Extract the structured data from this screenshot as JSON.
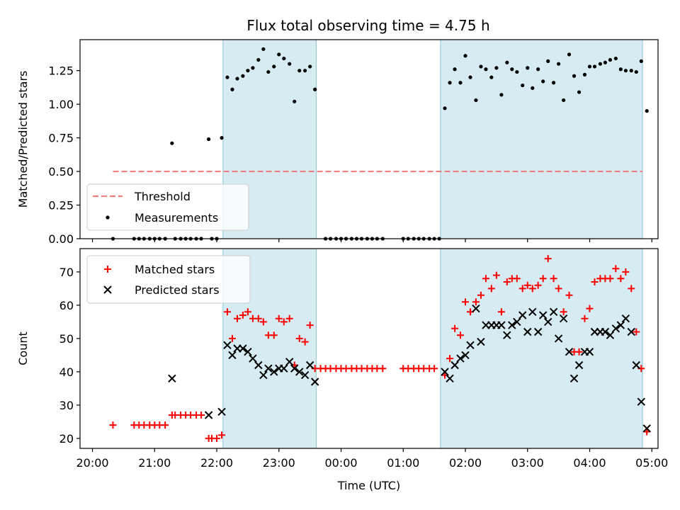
{
  "chart_data": [
    {
      "type": "scatter",
      "title": "Flux total observing time = 4.75 h",
      "xlabel": "",
      "ylabel": "Matched/Predicted stars",
      "ylim": [
        0,
        1.48
      ],
      "yticks": [
        0.0,
        0.25,
        0.5,
        0.75,
        1.0,
        1.25
      ],
      "ytick_labels": [
        "0.00",
        "0.25",
        "0.50",
        "0.75",
        "1.00",
        "1.25"
      ],
      "xlim": [
        19.8,
        29.1
      ],
      "xticks": [
        20,
        21,
        22,
        23,
        24,
        25,
        26,
        27,
        28,
        29
      ],
      "xtick_labels": [
        "20:00",
        "21:00",
        "22:00",
        "23:00",
        "00:00",
        "01:00",
        "02:00",
        "03:00",
        "04:00",
        "05:00"
      ],
      "grid": false,
      "legend_position": "lower-left",
      "observing_windows": [
        [
          22.1,
          23.6
        ],
        [
          25.6,
          28.85
        ]
      ],
      "threshold": {
        "name": "Threshold",
        "y": 0.5,
        "x_range": [
          20.33,
          28.85
        ],
        "color": "#f08080"
      },
      "series": [
        {
          "name": "Measurements",
          "color": "#000000",
          "points": [
            [
              20.33,
              0
            ],
            [
              20.67,
              0
            ],
            [
              20.75,
              0
            ],
            [
              20.83,
              0
            ],
            [
              20.92,
              0
            ],
            [
              21.0,
              0
            ],
            [
              21.08,
              0
            ],
            [
              21.17,
              0
            ],
            [
              21.28,
              0.71
            ],
            [
              21.33,
              0
            ],
            [
              21.42,
              0
            ],
            [
              21.5,
              0
            ],
            [
              21.58,
              0
            ],
            [
              21.67,
              0
            ],
            [
              21.75,
              0
            ],
            [
              21.87,
              0.74
            ],
            [
              21.92,
              0
            ],
            [
              22.0,
              0
            ],
            [
              22.08,
              0.75
            ],
            [
              22.17,
              1.2
            ],
            [
              22.25,
              1.11
            ],
            [
              22.33,
              1.19
            ],
            [
              22.42,
              1.21
            ],
            [
              22.5,
              1.25
            ],
            [
              22.58,
              1.27
            ],
            [
              22.67,
              1.33
            ],
            [
              22.75,
              1.41
            ],
            [
              22.83,
              1.24
            ],
            [
              22.92,
              1.28
            ],
            [
              23.0,
              1.37
            ],
            [
              23.08,
              1.34
            ],
            [
              23.17,
              1.3
            ],
            [
              23.25,
              1.02
            ],
            [
              23.33,
              1.25
            ],
            [
              23.42,
              1.25
            ],
            [
              23.5,
              1.28
            ],
            [
              23.58,
              1.11
            ],
            [
              23.75,
              0
            ],
            [
              23.83,
              0
            ],
            [
              23.92,
              0
            ],
            [
              24.0,
              0
            ],
            [
              24.08,
              0
            ],
            [
              24.17,
              0
            ],
            [
              24.25,
              0
            ],
            [
              24.33,
              0
            ],
            [
              24.42,
              0
            ],
            [
              24.5,
              0
            ],
            [
              24.58,
              0
            ],
            [
              24.67,
              0
            ],
            [
              25.0,
              0
            ],
            [
              25.08,
              0
            ],
            [
              25.17,
              0
            ],
            [
              25.25,
              0
            ],
            [
              25.33,
              0
            ],
            [
              25.42,
              0
            ],
            [
              25.5,
              0
            ],
            [
              25.58,
              0
            ],
            [
              25.67,
              0.97
            ],
            [
              25.75,
              1.16
            ],
            [
              25.83,
              1.26
            ],
            [
              25.92,
              1.16
            ],
            [
              26.0,
              1.36
            ],
            [
              26.08,
              1.2
            ],
            [
              26.17,
              1.03
            ],
            [
              26.25,
              1.28
            ],
            [
              26.33,
              1.26
            ],
            [
              26.42,
              1.2
            ],
            [
              26.5,
              1.27
            ],
            [
              26.58,
              1.07
            ],
            [
              26.67,
              1.31
            ],
            [
              26.75,
              1.26
            ],
            [
              26.83,
              1.24
            ],
            [
              26.92,
              1.14
            ],
            [
              27.0,
              1.27
            ],
            [
              27.08,
              1.12
            ],
            [
              27.17,
              1.26
            ],
            [
              27.25,
              1.17
            ],
            [
              27.33,
              1.32
            ],
            [
              27.42,
              1.16
            ],
            [
              27.5,
              1.3
            ],
            [
              27.58,
              1.03
            ],
            [
              27.67,
              1.37
            ],
            [
              27.75,
              1.21
            ],
            [
              27.83,
              1.09
            ],
            [
              27.92,
              1.22
            ],
            [
              28.0,
              1.28
            ],
            [
              28.08,
              1.28
            ],
            [
              28.17,
              1.3
            ],
            [
              28.25,
              1.31
            ],
            [
              28.33,
              1.33
            ],
            [
              28.42,
              1.34
            ],
            [
              28.5,
              1.26
            ],
            [
              28.58,
              1.25
            ],
            [
              28.67,
              1.25
            ],
            [
              28.75,
              1.24
            ],
            [
              28.83,
              1.32
            ],
            [
              28.92,
              0.95
            ]
          ]
        }
      ]
    },
    {
      "type": "scatter",
      "title": "",
      "xlabel": "Time (UTC)",
      "ylabel": "Count",
      "ylim": [
        17,
        77
      ],
      "yticks": [
        20,
        30,
        40,
        50,
        60,
        70
      ],
      "ytick_labels": [
        "20",
        "30",
        "40",
        "50",
        "60",
        "70"
      ],
      "xlim": [
        19.8,
        29.1
      ],
      "xticks": [
        20,
        21,
        22,
        23,
        24,
        25,
        26,
        27,
        28,
        29
      ],
      "xtick_labels": [
        "20:00",
        "21:00",
        "22:00",
        "23:00",
        "00:00",
        "01:00",
        "02:00",
        "03:00",
        "04:00",
        "05:00"
      ],
      "grid": false,
      "legend_position": "upper-left",
      "observing_windows": [
        [
          22.1,
          23.6
        ],
        [
          25.6,
          28.85
        ]
      ],
      "series": [
        {
          "name": "Matched stars",
          "marker": "plus",
          "color": "#ff0000",
          "points": [
            [
              20.33,
              24
            ],
            [
              20.67,
              24
            ],
            [
              20.75,
              24
            ],
            [
              20.83,
              24
            ],
            [
              20.92,
              24
            ],
            [
              21.0,
              24
            ],
            [
              21.08,
              24
            ],
            [
              21.17,
              24
            ],
            [
              21.28,
              27
            ],
            [
              21.33,
              27
            ],
            [
              21.42,
              27
            ],
            [
              21.5,
              27
            ],
            [
              21.58,
              27
            ],
            [
              21.67,
              27
            ],
            [
              21.75,
              27
            ],
            [
              21.87,
              20
            ],
            [
              21.92,
              20
            ],
            [
              22.0,
              20
            ],
            [
              22.08,
              21
            ],
            [
              22.17,
              58
            ],
            [
              22.25,
              50
            ],
            [
              22.33,
              56
            ],
            [
              22.42,
              57
            ],
            [
              22.5,
              58
            ],
            [
              22.58,
              56
            ],
            [
              22.67,
              56
            ],
            [
              22.75,
              55
            ],
            [
              22.83,
              51
            ],
            [
              22.92,
              51
            ],
            [
              23.0,
              56
            ],
            [
              23.08,
              55
            ],
            [
              23.17,
              56
            ],
            [
              23.25,
              42
            ],
            [
              23.33,
              50
            ],
            [
              23.42,
              49
            ],
            [
              23.5,
              54
            ],
            [
              23.58,
              41
            ],
            [
              23.67,
              41
            ],
            [
              23.75,
              41
            ],
            [
              23.83,
              41
            ],
            [
              23.92,
              41
            ],
            [
              24.0,
              41
            ],
            [
              24.08,
              41
            ],
            [
              24.17,
              41
            ],
            [
              24.25,
              41
            ],
            [
              24.33,
              41
            ],
            [
              24.42,
              41
            ],
            [
              24.5,
              41
            ],
            [
              24.58,
              41
            ],
            [
              24.67,
              41
            ],
            [
              25.0,
              41
            ],
            [
              25.08,
              41
            ],
            [
              25.17,
              41
            ],
            [
              25.25,
              41
            ],
            [
              25.33,
              41
            ],
            [
              25.42,
              41
            ],
            [
              25.5,
              41
            ],
            [
              25.67,
              39
            ],
            [
              25.75,
              44
            ],
            [
              25.83,
              53
            ],
            [
              25.92,
              51
            ],
            [
              26.0,
              61
            ],
            [
              26.08,
              58
            ],
            [
              26.17,
              61
            ],
            [
              26.25,
              63
            ],
            [
              26.33,
              68
            ],
            [
              26.42,
              65
            ],
            [
              26.5,
              69
            ],
            [
              26.58,
              58
            ],
            [
              26.67,
              67
            ],
            [
              26.75,
              68
            ],
            [
              26.83,
              68
            ],
            [
              26.92,
              65
            ],
            [
              27.0,
              66
            ],
            [
              27.08,
              65
            ],
            [
              27.17,
              66
            ],
            [
              27.25,
              68
            ],
            [
              27.33,
              74
            ],
            [
              27.42,
              68
            ],
            [
              27.5,
              65
            ],
            [
              27.58,
              58
            ],
            [
              27.67,
              63
            ],
            [
              27.75,
              46
            ],
            [
              27.83,
              46
            ],
            [
              27.92,
              56
            ],
            [
              28.0,
              59
            ],
            [
              28.08,
              67
            ],
            [
              28.17,
              68
            ],
            [
              28.25,
              68
            ],
            [
              28.33,
              68
            ],
            [
              28.42,
              71
            ],
            [
              28.5,
              68
            ],
            [
              28.58,
              70
            ],
            [
              28.67,
              65
            ],
            [
              28.75,
              52
            ],
            [
              28.83,
              41
            ],
            [
              28.92,
              22
            ]
          ]
        },
        {
          "name": "Predicted stars",
          "marker": "x",
          "color": "#000000",
          "points": [
            [
              21.28,
              38
            ],
            [
              21.87,
              27
            ],
            [
              22.08,
              28
            ],
            [
              22.17,
              48
            ],
            [
              22.25,
              45
            ],
            [
              22.33,
              47
            ],
            [
              22.42,
              47
            ],
            [
              22.5,
              46
            ],
            [
              22.58,
              44
            ],
            [
              22.67,
              42
            ],
            [
              22.75,
              39
            ],
            [
              22.83,
              41
            ],
            [
              22.92,
              40
            ],
            [
              23.0,
              41
            ],
            [
              23.08,
              41
            ],
            [
              23.17,
              43
            ],
            [
              23.25,
              41
            ],
            [
              23.33,
              40
            ],
            [
              23.42,
              39
            ],
            [
              23.5,
              42
            ],
            [
              23.58,
              37
            ],
            [
              25.67,
              40
            ],
            [
              25.75,
              38
            ],
            [
              25.83,
              42
            ],
            [
              25.92,
              44
            ],
            [
              26.0,
              45
            ],
            [
              26.08,
              48
            ],
            [
              26.17,
              59
            ],
            [
              26.25,
              49
            ],
            [
              26.33,
              54
            ],
            [
              26.42,
              54
            ],
            [
              26.5,
              54
            ],
            [
              26.58,
              54
            ],
            [
              26.67,
              51
            ],
            [
              26.75,
              54
            ],
            [
              26.83,
              55
            ],
            [
              26.92,
              57
            ],
            [
              27.0,
              52
            ],
            [
              27.08,
              58
            ],
            [
              27.17,
              52
            ],
            [
              27.25,
              57
            ],
            [
              27.33,
              55
            ],
            [
              27.42,
              58
            ],
            [
              27.5,
              50
            ],
            [
              27.58,
              56
            ],
            [
              27.67,
              46
            ],
            [
              27.75,
              38
            ],
            [
              27.83,
              42
            ],
            [
              27.92,
              46
            ],
            [
              28.0,
              46
            ],
            [
              28.08,
              52
            ],
            [
              28.17,
              52
            ],
            [
              28.25,
              52
            ],
            [
              28.33,
              51
            ],
            [
              28.42,
              53
            ],
            [
              28.5,
              54
            ],
            [
              28.58,
              56
            ],
            [
              28.67,
              52
            ],
            [
              28.75,
              42
            ],
            [
              28.83,
              31
            ],
            [
              28.92,
              23
            ]
          ]
        }
      ]
    }
  ]
}
